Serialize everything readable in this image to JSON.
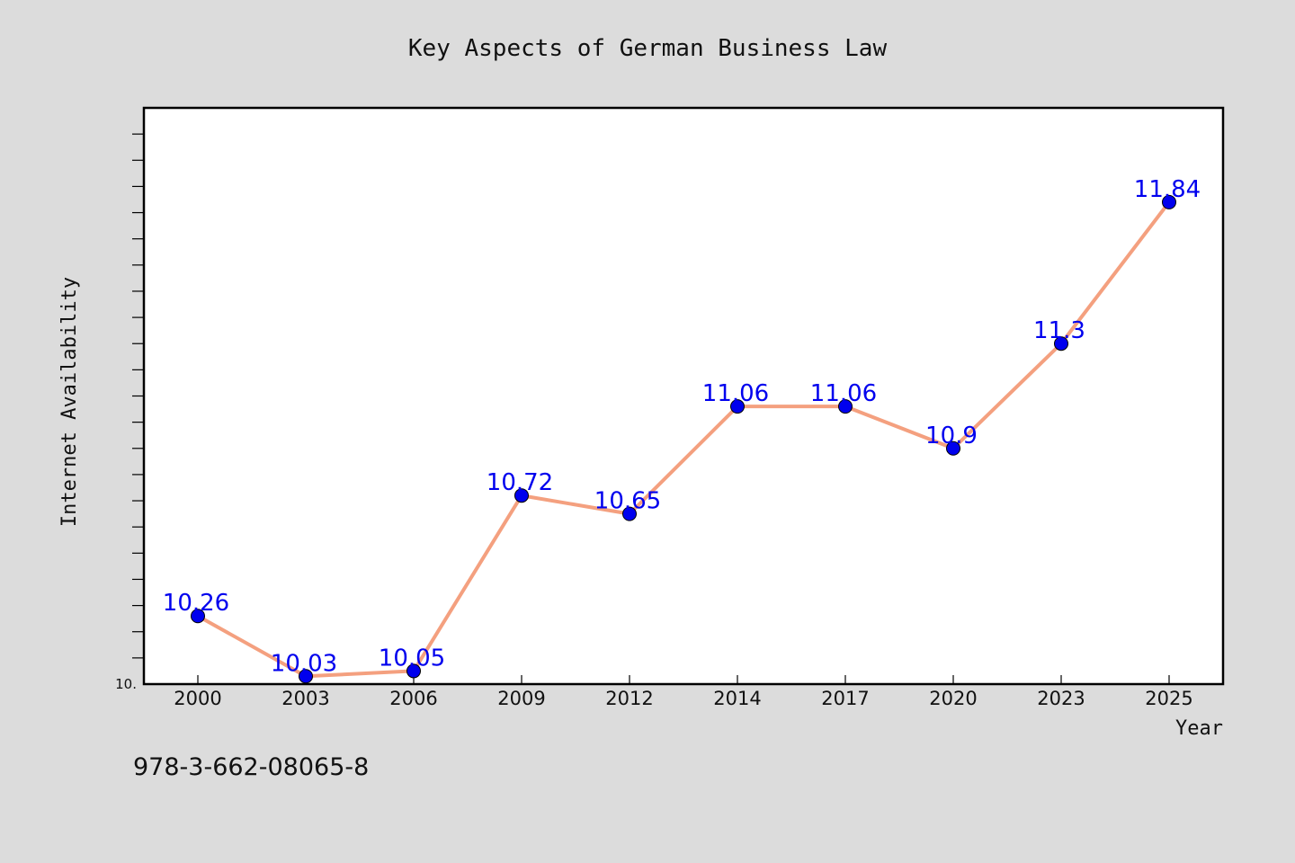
{
  "chart_data": {
    "type": "line",
    "title": "Key Aspects of German Business Law",
    "xlabel": "Year",
    "ylabel": "Internet Availability",
    "categories": [
      "2000",
      "2003",
      "2006",
      "2009",
      "2012",
      "2014",
      "2017",
      "2020",
      "2023",
      "2025"
    ],
    "series": [
      {
        "values": [
          10.26,
          10.03,
          10.05,
          10.72,
          10.65,
          11.06,
          11.06,
          10.9,
          11.3,
          11.84
        ]
      }
    ],
    "data_labels": [
      "10.26",
      "10.03",
      "10.05",
      "10.72",
      "10.65",
      "11.06",
      "11.06",
      "10.9",
      "11.3",
      "11.84"
    ],
    "ylim": [
      10.0,
      12.2
    ],
    "y_minor_tick_step": 0.1,
    "y_tick_labels": [
      {
        "value": 10.0,
        "label": "10."
      }
    ],
    "grid": false,
    "colors": {
      "line": "#f4a07f",
      "marker": "#0000ee",
      "data_label": "#0000ee",
      "background": "#dcdcdc",
      "plot_background": "#ffffff"
    }
  },
  "footer": {
    "isbn": "978-3-662-08065-8"
  }
}
